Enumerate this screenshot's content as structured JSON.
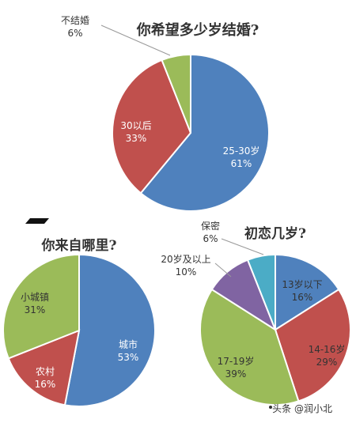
{
  "chart_data": [
    {
      "type": "pie",
      "title": "你希望多少岁结婚?",
      "slices": [
        {
          "label": "25-30岁",
          "value": 61,
          "pct_label": "61%",
          "color": "#4f81bd"
        },
        {
          "label": "30以后",
          "value": 33,
          "pct_label": "33%",
          "color": "#c0504d"
        },
        {
          "label": "不结婚",
          "value": 6,
          "pct_label": "6%",
          "color": "#9bbb59"
        }
      ]
    },
    {
      "type": "pie",
      "title": "你来自哪里?",
      "slices": [
        {
          "label": "城市",
          "value": 53,
          "pct_label": "53%",
          "color": "#4f81bd"
        },
        {
          "label": "农村",
          "value": 16,
          "pct_label": "16%",
          "color": "#c0504d"
        },
        {
          "label": "小城镇",
          "value": 31,
          "pct_label": "31%",
          "color": "#9bbb59"
        }
      ]
    },
    {
      "type": "pie",
      "title": "初恋几岁?",
      "slices": [
        {
          "label": "13岁以下",
          "value": 16,
          "pct_label": "16%",
          "color": "#4f81bd"
        },
        {
          "label": "14-16岁",
          "value": 29,
          "pct_label": "29%",
          "color": "#c0504d"
        },
        {
          "label": "17-19岁",
          "value": 39,
          "pct_label": "39%",
          "color": "#9bbb59"
        },
        {
          "label": "20岁及以上",
          "value": 10,
          "pct_label": "10%",
          "color": "#8064a2"
        },
        {
          "label": "保密",
          "value": 6,
          "pct_label": "6%",
          "color": "#4bacc6"
        }
      ]
    }
  ],
  "watermark": "头条 @润小北"
}
